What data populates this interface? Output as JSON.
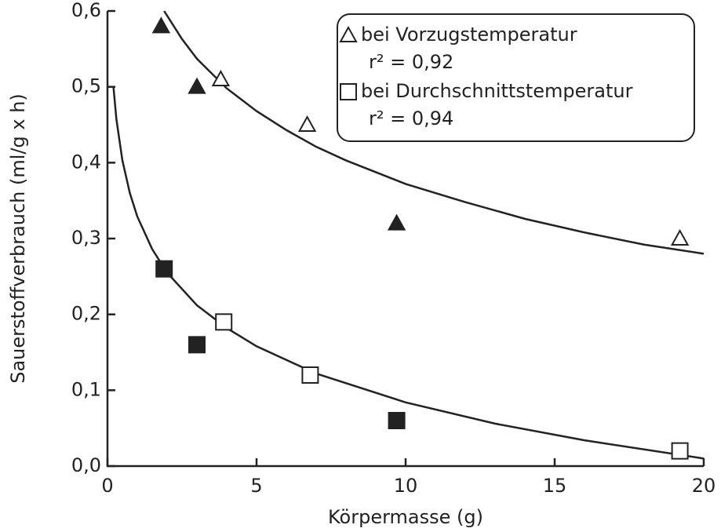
{
  "chart_data": {
    "type": "scatter",
    "xlabel": "Körpermasse  (g)",
    "ylabel": "Sauerstoffverbrauch  (ml/g x h)",
    "xlim": [
      0,
      20
    ],
    "xticks": [
      0,
      5,
      10,
      15,
      20
    ],
    "ylim": [
      0,
      0.6
    ],
    "yticks": [
      {
        "value": 0,
        "label": "0,0"
      },
      {
        "value": 0.1,
        "label": "0,1"
      },
      {
        "value": 0.2,
        "label": "0,2"
      },
      {
        "value": 0.3,
        "label": "0,3"
      },
      {
        "value": 0.4,
        "label": "0,4"
      },
      {
        "value": 0.5,
        "label": "0,5"
      },
      {
        "value": 0.6,
        "label": "0,6"
      }
    ],
    "color": "#222222",
    "series": [
      {
        "name": "bei Vorzugstemperatur",
        "marker": "triangle",
        "r2_text": "r² = 0,92",
        "x": [
          1.8,
          3.0,
          9.7,
          3.8,
          6.7,
          19.2
        ],
        "values": [
          0.58,
          0.5,
          0.32,
          0.51,
          0.45,
          0.3
        ],
        "filled": [
          true,
          true,
          true,
          false,
          false,
          false
        ],
        "fit": {
          "x": [
            1.9,
            2.5,
            3,
            4,
            5,
            6,
            7,
            8,
            10,
            12,
            14,
            16,
            18,
            20
          ],
          "values": [
            0.6,
            0.563,
            0.537,
            0.498,
            0.468,
            0.443,
            0.421,
            0.403,
            0.372,
            0.348,
            0.326,
            0.308,
            0.292,
            0.28
          ]
        }
      },
      {
        "name": "bei Durchschnittstemperatur",
        "marker": "square",
        "r2_text": "r² = 0,94",
        "x": [
          1.9,
          3.0,
          9.7,
          3.9,
          6.8,
          19.2
        ],
        "values": [
          0.26,
          0.16,
          0.06,
          0.19,
          0.12,
          0.02
        ],
        "filled": [
          true,
          true,
          true,
          false,
          false,
          false
        ],
        "fit": {
          "x": [
            0.2,
            0.3,
            0.5,
            0.75,
            1,
            1.5,
            2,
            3,
            4,
            5,
            7,
            10,
            13,
            16,
            20
          ],
          "values": [
            0.5,
            0.457,
            0.403,
            0.36,
            0.329,
            0.286,
            0.255,
            0.212,
            0.182,
            0.158,
            0.122,
            0.084,
            0.056,
            0.034,
            0.01
          ]
        }
      }
    ]
  }
}
